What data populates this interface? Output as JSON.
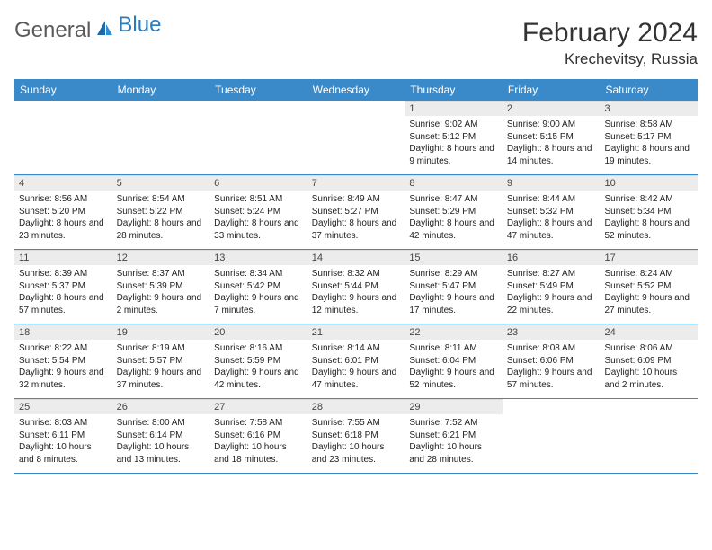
{
  "brand": {
    "text1": "General",
    "text2": "Blue"
  },
  "title": "February 2024",
  "location": "Krechevitsy, Russia",
  "colors": {
    "header_bg": "#3a8ac9",
    "header_text": "#ffffff",
    "daynum_bg": "#ececec",
    "row_border": "#3a8ac9",
    "page_bg": "#ffffff",
    "text": "#222222"
  },
  "day_names": [
    "Sunday",
    "Monday",
    "Tuesday",
    "Wednesday",
    "Thursday",
    "Friday",
    "Saturday"
  ],
  "weeks": [
    [
      null,
      null,
      null,
      null,
      {
        "n": "1",
        "sunrise": "9:02 AM",
        "sunset": "5:12 PM",
        "daylight": "8 hours and 9 minutes."
      },
      {
        "n": "2",
        "sunrise": "9:00 AM",
        "sunset": "5:15 PM",
        "daylight": "8 hours and 14 minutes."
      },
      {
        "n": "3",
        "sunrise": "8:58 AM",
        "sunset": "5:17 PM",
        "daylight": "8 hours and 19 minutes."
      }
    ],
    [
      {
        "n": "4",
        "sunrise": "8:56 AM",
        "sunset": "5:20 PM",
        "daylight": "8 hours and 23 minutes."
      },
      {
        "n": "5",
        "sunrise": "8:54 AM",
        "sunset": "5:22 PM",
        "daylight": "8 hours and 28 minutes."
      },
      {
        "n": "6",
        "sunrise": "8:51 AM",
        "sunset": "5:24 PM",
        "daylight": "8 hours and 33 minutes."
      },
      {
        "n": "7",
        "sunrise": "8:49 AM",
        "sunset": "5:27 PM",
        "daylight": "8 hours and 37 minutes."
      },
      {
        "n": "8",
        "sunrise": "8:47 AM",
        "sunset": "5:29 PM",
        "daylight": "8 hours and 42 minutes."
      },
      {
        "n": "9",
        "sunrise": "8:44 AM",
        "sunset": "5:32 PM",
        "daylight": "8 hours and 47 minutes."
      },
      {
        "n": "10",
        "sunrise": "8:42 AM",
        "sunset": "5:34 PM",
        "daylight": "8 hours and 52 minutes."
      }
    ],
    [
      {
        "n": "11",
        "sunrise": "8:39 AM",
        "sunset": "5:37 PM",
        "daylight": "8 hours and 57 minutes."
      },
      {
        "n": "12",
        "sunrise": "8:37 AM",
        "sunset": "5:39 PM",
        "daylight": "9 hours and 2 minutes."
      },
      {
        "n": "13",
        "sunrise": "8:34 AM",
        "sunset": "5:42 PM",
        "daylight": "9 hours and 7 minutes."
      },
      {
        "n": "14",
        "sunrise": "8:32 AM",
        "sunset": "5:44 PM",
        "daylight": "9 hours and 12 minutes."
      },
      {
        "n": "15",
        "sunrise": "8:29 AM",
        "sunset": "5:47 PM",
        "daylight": "9 hours and 17 minutes."
      },
      {
        "n": "16",
        "sunrise": "8:27 AM",
        "sunset": "5:49 PM",
        "daylight": "9 hours and 22 minutes."
      },
      {
        "n": "17",
        "sunrise": "8:24 AM",
        "sunset": "5:52 PM",
        "daylight": "9 hours and 27 minutes."
      }
    ],
    [
      {
        "n": "18",
        "sunrise": "8:22 AM",
        "sunset": "5:54 PM",
        "daylight": "9 hours and 32 minutes."
      },
      {
        "n": "19",
        "sunrise": "8:19 AM",
        "sunset": "5:57 PM",
        "daylight": "9 hours and 37 minutes."
      },
      {
        "n": "20",
        "sunrise": "8:16 AM",
        "sunset": "5:59 PM",
        "daylight": "9 hours and 42 minutes."
      },
      {
        "n": "21",
        "sunrise": "8:14 AM",
        "sunset": "6:01 PM",
        "daylight": "9 hours and 47 minutes."
      },
      {
        "n": "22",
        "sunrise": "8:11 AM",
        "sunset": "6:04 PM",
        "daylight": "9 hours and 52 minutes."
      },
      {
        "n": "23",
        "sunrise": "8:08 AM",
        "sunset": "6:06 PM",
        "daylight": "9 hours and 57 minutes."
      },
      {
        "n": "24",
        "sunrise": "8:06 AM",
        "sunset": "6:09 PM",
        "daylight": "10 hours and 2 minutes."
      }
    ],
    [
      {
        "n": "25",
        "sunrise": "8:03 AM",
        "sunset": "6:11 PM",
        "daylight": "10 hours and 8 minutes."
      },
      {
        "n": "26",
        "sunrise": "8:00 AM",
        "sunset": "6:14 PM",
        "daylight": "10 hours and 13 minutes."
      },
      {
        "n": "27",
        "sunrise": "7:58 AM",
        "sunset": "6:16 PM",
        "daylight": "10 hours and 18 minutes."
      },
      {
        "n": "28",
        "sunrise": "7:55 AM",
        "sunset": "6:18 PM",
        "daylight": "10 hours and 23 minutes."
      },
      {
        "n": "29",
        "sunrise": "7:52 AM",
        "sunset": "6:21 PM",
        "daylight": "10 hours and 28 minutes."
      },
      null,
      null
    ]
  ],
  "labels": {
    "sunrise": "Sunrise: ",
    "sunset": "Sunset: ",
    "daylight": "Daylight: "
  }
}
